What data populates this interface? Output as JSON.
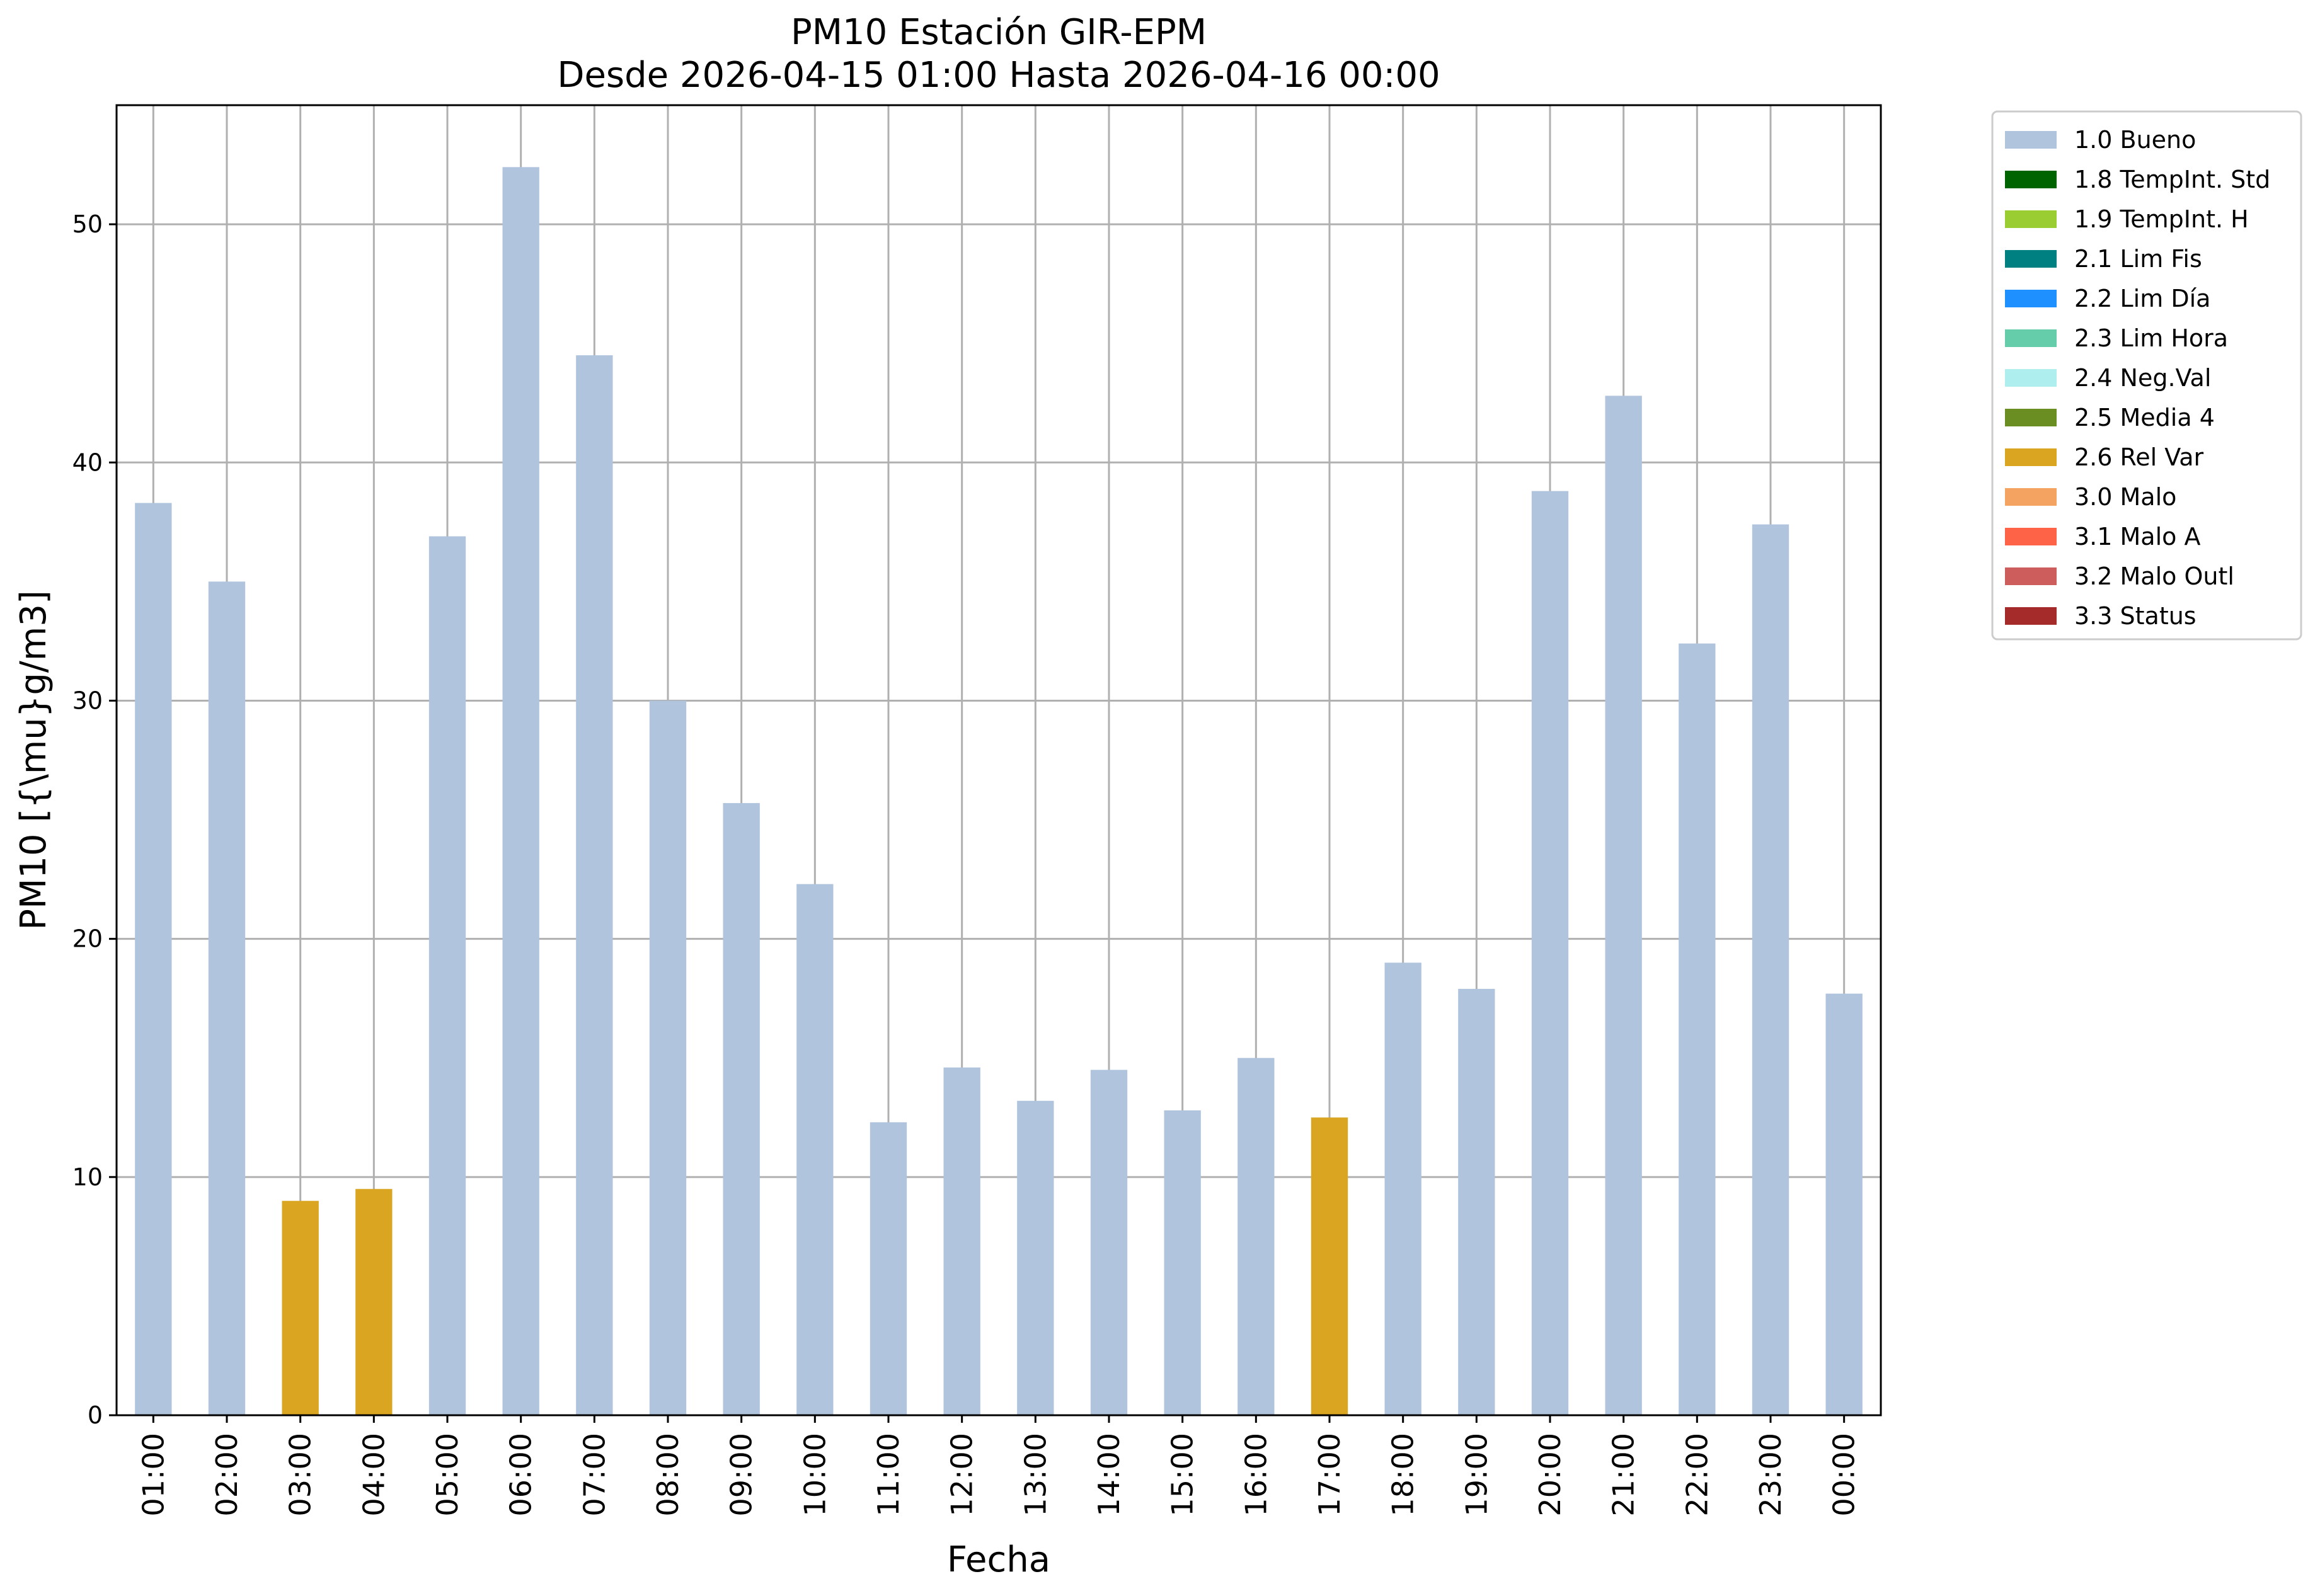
{
  "chart_data": {
    "type": "bar",
    "title": [
      "PM10 Estación GIR-EPM",
      "Desde 2026-04-15 01:00 Hasta 2026-04-16 00:00"
    ],
    "xlabel": "Fecha",
    "ylabel": "PM10 [{\\mu}g/m3]",
    "ylim": [
      0,
      55
    ],
    "yticks": [
      0,
      10,
      20,
      30,
      40,
      50
    ],
    "grid": true,
    "legend_position": "outside top-right",
    "categories": [
      "01:00",
      "02:00",
      "03:00",
      "04:00",
      "05:00",
      "06:00",
      "07:00",
      "08:00",
      "09:00",
      "10:00",
      "11:00",
      "12:00",
      "13:00",
      "14:00",
      "15:00",
      "16:00",
      "17:00",
      "18:00",
      "19:00",
      "20:00",
      "21:00",
      "22:00",
      "23:00",
      "00:00"
    ],
    "values": [
      38.3,
      35.0,
      9.0,
      9.5,
      36.9,
      52.4,
      44.5,
      30.0,
      25.7,
      22.3,
      12.3,
      14.6,
      13.2,
      14.5,
      12.8,
      15.0,
      12.5,
      19.0,
      17.9,
      38.8,
      42.8,
      32.4,
      37.4,
      17.7
    ],
    "flags": [
      "1.0 Bueno",
      "1.0 Bueno",
      "2.6 Rel Var",
      "2.6 Rel Var",
      "1.0 Bueno",
      "1.0 Bueno",
      "1.0 Bueno",
      "1.0 Bueno",
      "1.0 Bueno",
      "1.0 Bueno",
      "1.0 Bueno",
      "1.0 Bueno",
      "1.0 Bueno",
      "1.0 Bueno",
      "1.0 Bueno",
      "1.0 Bueno",
      "2.6 Rel Var",
      "1.0 Bueno",
      "1.0 Bueno",
      "1.0 Bueno",
      "1.0 Bueno",
      "1.0 Bueno",
      "1.0 Bueno",
      "1.0 Bueno"
    ],
    "legend": [
      {
        "name": "1.0 Bueno",
        "color": "#b0c4de"
      },
      {
        "name": "1.8 TempInt. Std",
        "color": "#006400"
      },
      {
        "name": "1.9 TempInt. H",
        "color": "#9acd32"
      },
      {
        "name": "2.1 Lim Fis",
        "color": "#008080"
      },
      {
        "name": "2.2 Lim Día",
        "color": "#1e90ff"
      },
      {
        "name": "2.3 Lim Hora",
        "color": "#66cdaa"
      },
      {
        "name": "2.4 Neg.Val",
        "color": "#afeeee"
      },
      {
        "name": "2.5 Media 4",
        "color": "#6b8e23"
      },
      {
        "name": "2.6 Rel Var",
        "color": "#daa520"
      },
      {
        "name": "3.0 Malo",
        "color": "#f4a460"
      },
      {
        "name": "3.1 Malo A",
        "color": "#ff6347"
      },
      {
        "name": "3.2 Malo Outl",
        "color": "#cd5c5c"
      },
      {
        "name": "3.3 Status",
        "color": "#a52a2a"
      }
    ]
  }
}
